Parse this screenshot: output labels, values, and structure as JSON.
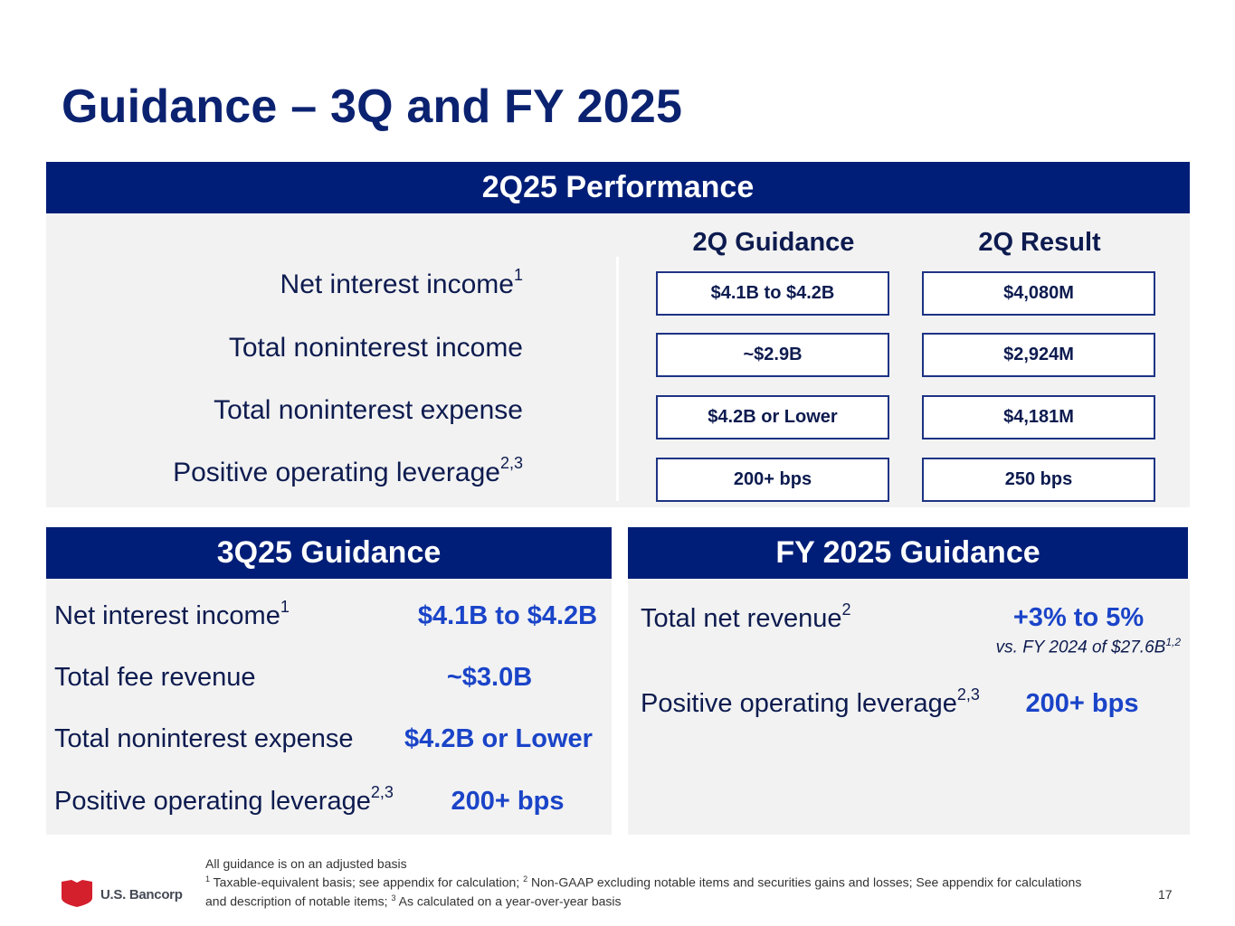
{
  "title": "Guidance – 3Q and FY 2025",
  "performance": {
    "header": "2Q25 Performance",
    "col_guidance": "2Q Guidance",
    "col_result": "2Q Result",
    "rows": [
      {
        "label": "Net interest income",
        "sup": "1",
        "guidance": "$4.1B to $4.2B",
        "result": "$4,080M"
      },
      {
        "label": "Total noninterest income",
        "sup": "",
        "guidance": "~$2.9B",
        "result": "$2,924M"
      },
      {
        "label": "Total noninterest expense",
        "sup": "",
        "guidance": "$4.2B or Lower",
        "result": "$4,181M"
      },
      {
        "label": "Positive operating leverage",
        "sup": "2,3",
        "guidance": "200+ bps",
        "result": "250 bps"
      }
    ]
  },
  "q3": {
    "header": "3Q25 Guidance",
    "rows": [
      {
        "label": "Net interest income",
        "sup": "1",
        "value": "$4.1B to $4.2B"
      },
      {
        "label": "Total fee revenue",
        "sup": "",
        "value": "~$3.0B"
      },
      {
        "label": "Total noninterest expense",
        "sup": "",
        "value": "$4.2B or Lower"
      },
      {
        "label": "Positive operating leverage",
        "sup": "2,3",
        "value": "200+ bps"
      }
    ]
  },
  "fy": {
    "header": "FY 2025 Guidance",
    "rows": [
      {
        "label": "Total net revenue",
        "sup": "2",
        "value": "+3% to 5%",
        "note": "vs. FY 2024 of $27.6B",
        "note_sup": "1,2"
      },
      {
        "label": "Positive operating leverage",
        "sup": "2,3",
        "value": "200+ bps"
      }
    ]
  },
  "footer": {
    "line1": "All guidance is on an adjusted basis",
    "fn1_num": "1",
    "fn1": " Taxable-equivalent basis; see appendix for calculation; ",
    "fn2_num": "2",
    "fn2": " Non-GAAP excluding notable items and securities gains and losses; See appendix for calculations and description of notable items; ",
    "fn3_num": "3",
    "fn3": " As calculated on a year-over-year basis"
  },
  "logo_text": "U.S. Bancorp",
  "page_number": "17",
  "colors": {
    "navy": "#001e78",
    "accent_blue": "#1a44c8",
    "panel": "#f2f2f2",
    "logo_red": "#d41f2d"
  }
}
